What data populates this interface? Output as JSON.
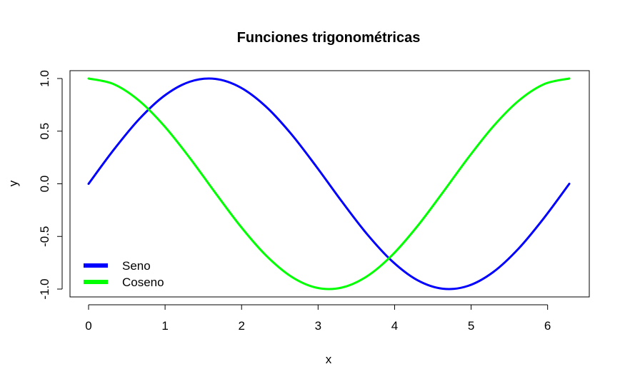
{
  "chart_data": {
    "type": "line",
    "title": "Funciones trigonométricas",
    "xlabel": "x",
    "ylabel": "y",
    "xlim": [
      0,
      6.2832
    ],
    "ylim": [
      -1.0,
      1.0
    ],
    "x_ticks": [
      0,
      1,
      2,
      3,
      4,
      5,
      6
    ],
    "y_ticks": [
      -1.0,
      -0.5,
      0.0,
      0.5,
      1.0
    ],
    "x_tick_labels": [
      "0",
      "1",
      "2",
      "3",
      "4",
      "5",
      "6"
    ],
    "y_tick_labels": [
      "-1.0",
      "-0.5",
      "0.0",
      "0.5",
      "1.0"
    ],
    "grid": false,
    "legend_position": "bottom-left",
    "x": [
      0,
      0.3307,
      0.6614,
      0.9921,
      1.3228,
      1.6535,
      1.9842,
      2.3149,
      2.6456,
      2.9762,
      3.3069,
      3.6376,
      3.9683,
      4.299,
      4.6297,
      4.9604,
      5.2911,
      5.6218,
      5.9525,
      6.2832
    ],
    "series": [
      {
        "name": "Seno",
        "color": "#0000ff",
        "values": [
          0.0,
          0.3247,
          0.6142,
          0.8372,
          0.9694,
          0.9966,
          0.9158,
          0.7357,
          0.4759,
          0.1646,
          -0.1646,
          -0.4759,
          -0.7357,
          -0.9158,
          -0.9966,
          -0.9694,
          -0.8372,
          -0.6142,
          -0.3247,
          0.0
        ]
      },
      {
        "name": "Coseno",
        "color": "#00ff00",
        "values": [
          1.0,
          0.9458,
          0.7891,
          0.5469,
          0.2455,
          -0.0826,
          -0.4017,
          -0.6773,
          -0.8795,
          -0.9864,
          -0.9864,
          -0.8795,
          -0.6773,
          -0.4017,
          -0.0826,
          0.2455,
          0.5469,
          0.7891,
          0.9458,
          1.0
        ]
      }
    ]
  }
}
